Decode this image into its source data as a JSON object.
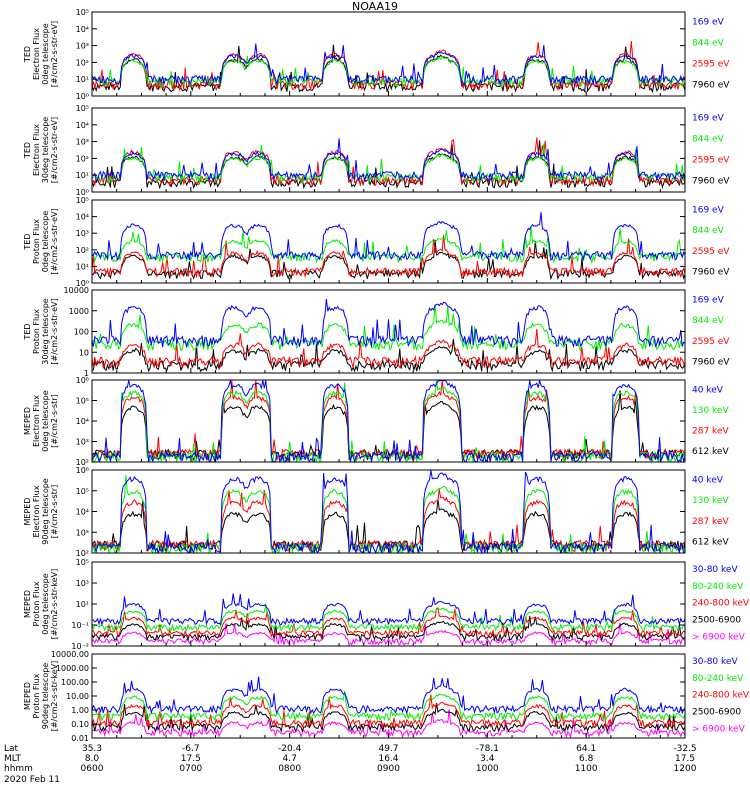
{
  "title": "NOAA19",
  "chart_data": [
    {
      "type": "line",
      "scale": "log",
      "ylim": [
        1,
        100000
      ],
      "ylabel": [
        "TED",
        "Electron Flux",
        "0deg telescope",
        "[#/cm2-s-str-eV]"
      ],
      "tick_labels": [
        "10⁵",
        "10⁴",
        "10³",
        "10²",
        "10¹",
        "10⁰"
      ],
      "series": [
        {
          "name": "7960 eV",
          "color": "#000000",
          "peak": 150,
          "base": 3
        },
        {
          "name": "2595 eV",
          "color": "#ff0000",
          "peak": 300,
          "base": 4
        },
        {
          "name": "844 eV",
          "color": "#00ee00",
          "peak": 120,
          "base": 6
        },
        {
          "name": "169 eV",
          "color": "#0000ff",
          "peak": 250,
          "base": 8
        }
      ]
    },
    {
      "type": "line",
      "scale": "log",
      "ylim": [
        1,
        100000
      ],
      "ylabel": [
        "TED",
        "Electron Flux",
        "30deg telescope",
        "[#/cm2-s-str-eV]"
      ],
      "tick_labels": [
        "10⁵",
        "10⁴",
        "10³",
        "10²",
        "10¹",
        "10⁰"
      ],
      "series": [
        {
          "name": "7960 eV",
          "color": "#000000",
          "peak": 120,
          "base": 3
        },
        {
          "name": "2595 eV",
          "color": "#ff0000",
          "peak": 250,
          "base": 4
        },
        {
          "name": "844 eV",
          "color": "#00ee00",
          "peak": 100,
          "base": 6
        },
        {
          "name": "169 eV",
          "color": "#0000ff",
          "peak": 200,
          "base": 8
        }
      ]
    },
    {
      "type": "line",
      "scale": "log",
      "ylim": [
        1,
        100000
      ],
      "ylabel": [
        "TED",
        "Proton Flux",
        "0deg telescope",
        "[#/cm2-s-str-eV]"
      ],
      "tick_labels": [
        "10⁵",
        "10⁴",
        "10³",
        "10²",
        "10¹",
        "10⁰"
      ],
      "series": [
        {
          "name": "7960 eV",
          "color": "#000000",
          "peak": 40,
          "base": 3
        },
        {
          "name": "2595 eV",
          "color": "#ff0000",
          "peak": 60,
          "base": 4
        },
        {
          "name": "844 eV",
          "color": "#00ee00",
          "peak": 300,
          "base": 30
        },
        {
          "name": "169 eV",
          "color": "#0000ff",
          "peak": 3000,
          "base": 40
        }
      ]
    },
    {
      "type": "line",
      "scale": "log",
      "ylim": [
        1,
        10000
      ],
      "ylabel": [
        "TED",
        "Proton Flux",
        "30deg telescope",
        "[#/cm2-s-str-eV]"
      ],
      "tick_labels": [
        "10000",
        "1000",
        "100",
        "10",
        "1"
      ],
      "series": [
        {
          "name": "7960 eV",
          "color": "#000000",
          "peak": 10,
          "base": 2
        },
        {
          "name": "2595 eV",
          "color": "#ff0000",
          "peak": 20,
          "base": 3
        },
        {
          "name": "844 eV",
          "color": "#00ee00",
          "peak": 200,
          "base": 20
        },
        {
          "name": "169 eV",
          "color": "#0000ff",
          "peak": 1500,
          "base": 30
        }
      ]
    },
    {
      "type": "line",
      "scale": "log",
      "ylim": [
        100,
        1000000
      ],
      "ylabel": [
        "MEPED",
        "Electron Flux",
        "0deg telescope",
        "[#/cm2-s-str]"
      ],
      "tick_labels": [
        "10⁶",
        "10⁵",
        "10⁴",
        "10³",
        "10²"
      ],
      "series": [
        {
          "name": "612 keV",
          "color": "#000000",
          "peak": 50000,
          "base": 200
        },
        {
          "name": "287 keV",
          "color": "#ff0000",
          "peak": 150000,
          "base": 200
        },
        {
          "name": "130 keV",
          "color": "#00ee00",
          "peak": 250000,
          "base": 150
        },
        {
          "name": "40 keV",
          "color": "#0000ff",
          "peak": 600000,
          "base": 150
        }
      ]
    },
    {
      "type": "line",
      "scale": "log",
      "ylim": [
        100,
        1000000
      ],
      "ylabel": [
        "MEPED",
        "Electron Flux",
        "90deg telescope",
        "[#/cm2-s-str]"
      ],
      "tick_labels": [
        "10⁶",
        "10⁵",
        "10⁴",
        "10³",
        "10²"
      ],
      "series": [
        {
          "name": "612 keV",
          "color": "#000000",
          "peak": 8000,
          "base": 200
        },
        {
          "name": "287 keV",
          "color": "#ff0000",
          "peak": 30000,
          "base": 200
        },
        {
          "name": "130 keV",
          "color": "#00ee00",
          "peak": 100000,
          "base": 150
        },
        {
          "name": "40 keV",
          "color": "#0000ff",
          "peak": 400000,
          "base": 150
        }
      ]
    },
    {
      "type": "line",
      "scale": "log",
      "ylim": [
        0.01,
        100000
      ],
      "ylabel": [
        "MEPED",
        "Proton Flux",
        "0deg telescope",
        "[#/cm2-s-str-keV]"
      ],
      "tick_labels": [
        "10⁵",
        "10³",
        "10¹",
        "10⁻¹",
        "10⁻²"
      ],
      "series": [
        {
          "name": "> 6900 keV",
          "color": "#ff00ff",
          "peak": 0.1,
          "base": 0.02
        },
        {
          "name": "2500-6900",
          "color": "#000000",
          "peak": 0.6,
          "base": 0.05
        },
        {
          "name": "240-800 keV",
          "color": "#ff0000",
          "peak": 2,
          "base": 0.1
        },
        {
          "name": "80-240 keV",
          "color": "#00ee00",
          "peak": 8,
          "base": 0.3
        },
        {
          "name": "30-80 keV",
          "color": "#0000ff",
          "peak": 30,
          "base": 1
        }
      ]
    },
    {
      "type": "line",
      "scale": "log",
      "ylim": [
        0.01,
        10000
      ],
      "ylabel": [
        "MEPED",
        "Proton Flux",
        "90deg telescope",
        "[#/cm2-s-str-keV]"
      ],
      "tick_labels": [
        "10000.00",
        "1000.00",
        "100.00",
        "10.00",
        "1.00",
        "0.10",
        "0.01"
      ],
      "series": [
        {
          "name": "> 6900 keV",
          "color": "#ff00ff",
          "peak": 0.1,
          "base": 0.02
        },
        {
          "name": "2500-6900",
          "color": "#000000",
          "peak": 0.6,
          "base": 0.05
        },
        {
          "name": "240-800 keV",
          "color": "#ff0000",
          "peak": 2,
          "base": 0.1
        },
        {
          "name": "80-240 keV",
          "color": "#00ee00",
          "peak": 8,
          "base": 0.3
        },
        {
          "name": "30-80 keV",
          "color": "#0000ff",
          "peak": 30,
          "base": 1
        }
      ]
    }
  ],
  "xaxis": {
    "row_labels": [
      "Lat",
      "MLT",
      "hhmm",
      "2020 Feb 11"
    ],
    "ticks": [
      {
        "lat": "35.3",
        "mlt": "8.0",
        "hhmm": "0600"
      },
      {
        "lat": "-6.7",
        "mlt": "17.5",
        "hhmm": "0700"
      },
      {
        "lat": "-20.4",
        "mlt": "4.7",
        "hhmm": "0800"
      },
      {
        "lat": "49.7",
        "mlt": "16.4",
        "hhmm": "0900"
      },
      {
        "lat": "-78.1",
        "mlt": "3.4",
        "hhmm": "1000"
      },
      {
        "lat": "64.1",
        "mlt": "6.8",
        "hhmm": "1100"
      },
      {
        "lat": "-32.5",
        "mlt": "17.5",
        "hhmm": "1200"
      }
    ]
  },
  "passes": [
    0.07,
    0.24,
    0.41,
    0.6,
    0.75,
    0.9,
    0.28,
    0.58
  ]
}
